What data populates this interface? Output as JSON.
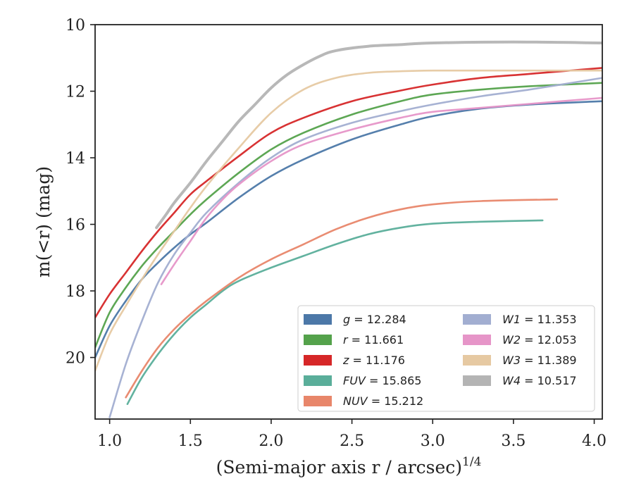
{
  "chart_data": {
    "type": "line",
    "xlabel": "(Semi-major axis r / arcsec)",
    "xlabel_superscript": "1/4",
    "ylabel": "m(<r) (mag)",
    "xlim": [
      0.91,
      4.05
    ],
    "ylim": [
      21.85,
      10.0
    ],
    "y_inverted": true,
    "grid": false,
    "legend_position": "lower-right",
    "xticks": [
      1.0,
      1.5,
      2.0,
      2.5,
      3.0,
      3.5,
      4.0
    ],
    "xtick_labels": [
      "1.0",
      "1.5",
      "2.0",
      "2.5",
      "3.0",
      "3.5",
      "4.0"
    ],
    "yticks": [
      10,
      12,
      14,
      16,
      18,
      20
    ],
    "ytick_labels": [
      "10",
      "12",
      "14",
      "16",
      "18",
      "20"
    ],
    "series": [
      {
        "name": "g",
        "label_value": "12.284",
        "color": "#4c78a8",
        "x": [
          0.91,
          1.0,
          1.1,
          1.2,
          1.3,
          1.4,
          1.5,
          1.6,
          1.8,
          2.0,
          2.2,
          2.5,
          2.8,
          3.0,
          3.3,
          3.6,
          4.05
        ],
        "y": [
          20.0,
          19.05,
          18.3,
          17.65,
          17.15,
          16.7,
          16.3,
          15.95,
          15.2,
          14.55,
          14.05,
          13.45,
          13.0,
          12.75,
          12.52,
          12.4,
          12.3
        ]
      },
      {
        "name": "r",
        "label_value": "11.661",
        "color": "#54a24b",
        "x": [
          0.91,
          1.0,
          1.1,
          1.2,
          1.3,
          1.4,
          1.5,
          1.6,
          1.8,
          2.0,
          2.2,
          2.5,
          2.8,
          3.0,
          3.3,
          3.6,
          4.05
        ],
        "y": [
          19.7,
          18.65,
          17.9,
          17.25,
          16.7,
          16.2,
          15.7,
          15.25,
          14.45,
          13.75,
          13.25,
          12.7,
          12.3,
          12.1,
          11.95,
          11.85,
          11.75
        ]
      },
      {
        "name": "z",
        "label_value": "11.176",
        "color": "#d62728",
        "x": [
          0.91,
          1.0,
          1.1,
          1.2,
          1.3,
          1.4,
          1.5,
          1.6,
          1.8,
          2.0,
          2.2,
          2.5,
          2.8,
          3.0,
          3.3,
          3.6,
          4.05
        ],
        "y": [
          18.8,
          18.1,
          17.45,
          16.8,
          16.2,
          15.65,
          15.1,
          14.7,
          13.95,
          13.25,
          12.8,
          12.3,
          11.98,
          11.8,
          11.6,
          11.48,
          11.3
        ]
      },
      {
        "name": "FUV",
        "label_value": "15.865",
        "color": "#5aae9a",
        "x": [
          1.11,
          1.2,
          1.3,
          1.4,
          1.5,
          1.6,
          1.7,
          1.8,
          2.0,
          2.2,
          2.4,
          2.6,
          2.8,
          3.0,
          3.3,
          3.68
        ],
        "y": [
          21.4,
          20.6,
          19.9,
          19.3,
          18.8,
          18.4,
          18.0,
          17.7,
          17.3,
          16.95,
          16.6,
          16.3,
          16.1,
          15.98,
          15.92,
          15.88
        ]
      },
      {
        "name": "NUV",
        "label_value": "15.212",
        "color": "#e8866a",
        "x": [
          1.1,
          1.2,
          1.3,
          1.4,
          1.5,
          1.6,
          1.8,
          2.0,
          2.2,
          2.4,
          2.6,
          2.8,
          3.0,
          3.3,
          3.77
        ],
        "y": [
          21.2,
          20.4,
          19.7,
          19.15,
          18.7,
          18.3,
          17.6,
          17.05,
          16.6,
          16.15,
          15.8,
          15.55,
          15.4,
          15.3,
          15.25
        ]
      },
      {
        "name": "W1",
        "label_value": "11.353",
        "color": "#a2aed1",
        "x": [
          1.0,
          1.1,
          1.2,
          1.3,
          1.4,
          1.5,
          1.6,
          1.8,
          2.0,
          2.2,
          2.5,
          2.8,
          3.0,
          3.3,
          3.6,
          4.05
        ],
        "y": [
          21.8,
          20.2,
          18.9,
          17.75,
          16.9,
          16.25,
          15.65,
          14.75,
          14.0,
          13.45,
          12.95,
          12.6,
          12.4,
          12.15,
          11.95,
          11.6
        ]
      },
      {
        "name": "W2",
        "label_value": "12.053",
        "color": "#e695c8",
        "x": [
          1.32,
          1.4,
          1.5,
          1.6,
          1.7,
          1.8,
          2.0,
          2.2,
          2.5,
          2.8,
          3.0,
          3.3,
          3.6,
          4.05
        ],
        "y": [
          17.8,
          17.2,
          16.5,
          15.8,
          15.25,
          14.8,
          14.1,
          13.6,
          13.15,
          12.8,
          12.62,
          12.5,
          12.38,
          12.2
        ]
      },
      {
        "name": "W3",
        "label_value": "11.389",
        "color": "#e6c9a2",
        "x": [
          0.91,
          1.0,
          1.1,
          1.2,
          1.3,
          1.4,
          1.5,
          1.6,
          1.8,
          2.0,
          2.2,
          2.4,
          2.6,
          2.8,
          3.0,
          3.5,
          4.05
        ],
        "y": [
          20.4,
          19.3,
          18.45,
          17.65,
          16.9,
          16.2,
          15.5,
          14.85,
          13.7,
          12.65,
          11.95,
          11.6,
          11.45,
          11.4,
          11.38,
          11.38,
          11.38
        ]
      },
      {
        "name": "W4",
        "label_value": "10.517",
        "color": "#b4b4b4",
        "x": [
          1.29,
          1.35,
          1.4,
          1.5,
          1.6,
          1.7,
          1.8,
          1.9,
          2.0,
          2.1,
          2.2,
          2.3,
          2.4,
          2.6,
          2.8,
          3.0,
          3.5,
          4.05
        ],
        "y": [
          16.1,
          15.7,
          15.35,
          14.75,
          14.1,
          13.5,
          12.9,
          12.4,
          11.9,
          11.5,
          11.2,
          10.95,
          10.78,
          10.65,
          10.6,
          10.55,
          10.52,
          10.55
        ]
      }
    ]
  }
}
